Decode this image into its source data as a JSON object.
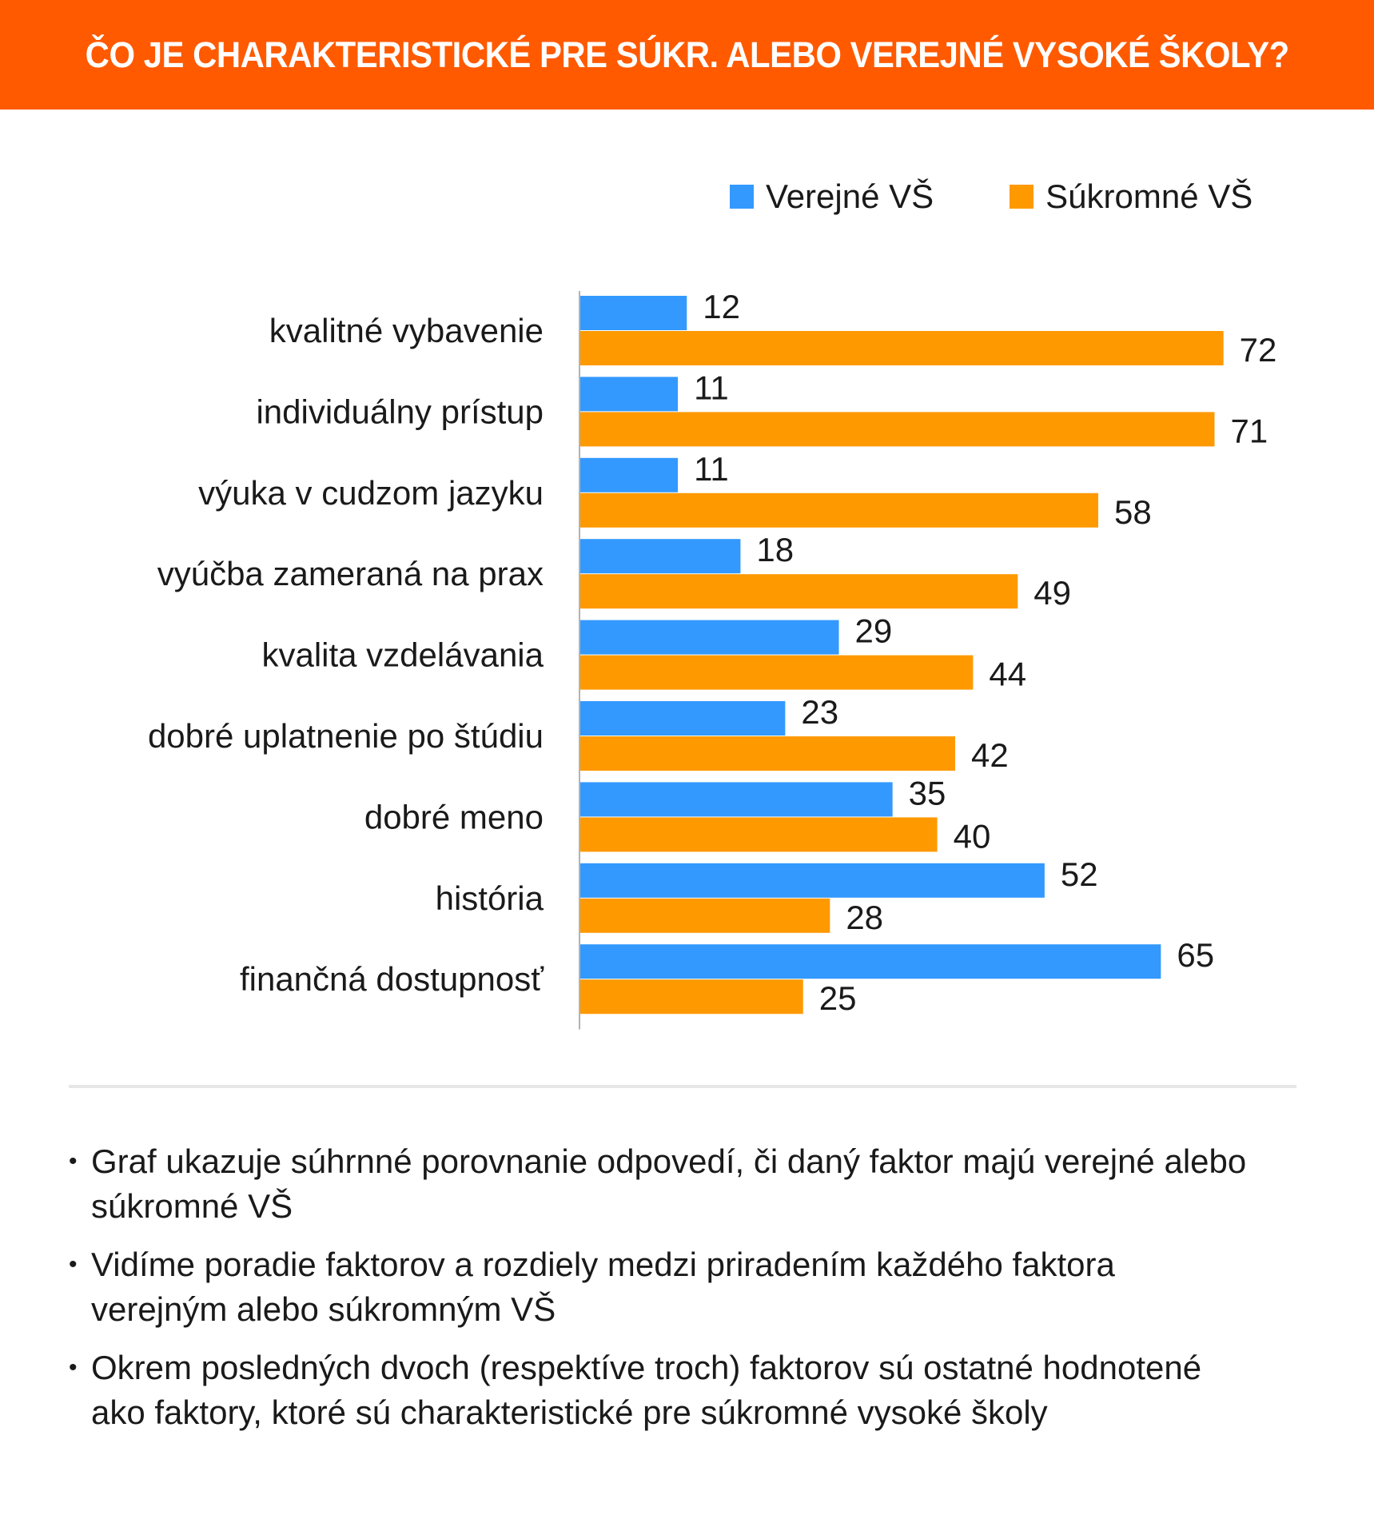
{
  "header": {
    "title": "ČO JE CHARAKTERISTICKÉ PRE SÚKR. ALEBO VEREJNÉ VYSOKÉ ŠKOLY?",
    "color": "#ff5a00"
  },
  "chart_data": {
    "type": "bar",
    "orientation": "horizontal",
    "title": "ČO JE CHARAKTERISTICKÉ PRE SÚKR. ALEBO VEREJNÉ VYSOKÉ ŠKOLY?",
    "categories": [
      "kvalitné vybavenie",
      "individuálny prístup",
      "výuka v cudzom jazyku",
      "vyúčba zameraná na prax",
      "kvalita vzdelávania",
      "dobré uplatnenie po štúdiu",
      "dobré meno",
      "história",
      "finančná dostupnosť"
    ],
    "series": [
      {
        "name": "Verejné VŠ",
        "color": "#3399ff",
        "values": [
          12,
          11,
          11,
          18,
          29,
          23,
          35,
          52,
          65
        ]
      },
      {
        "name": "Súkromné VŠ",
        "color": "#ff9900",
        "values": [
          72,
          71,
          58,
          49,
          44,
          42,
          40,
          28,
          25
        ]
      }
    ],
    "xlim": [
      0,
      80
    ],
    "grid": false,
    "legend": "top-right",
    "data_labels": true
  },
  "notes": [
    "Graf ukazuje súhrnné porovnanie odpovedí, či daný faktor majú verejné alebo súkromné VŠ",
    "Vidíme poradie faktorov a rozdiely medzi priradením každého faktora verejným alebo súkromným VŠ",
    "Okrem posledných dvoch (respektíve troch) faktorov sú ostatné hodnotené ako faktory, ktoré sú charakteristické pre súkromné vysoké školy"
  ]
}
